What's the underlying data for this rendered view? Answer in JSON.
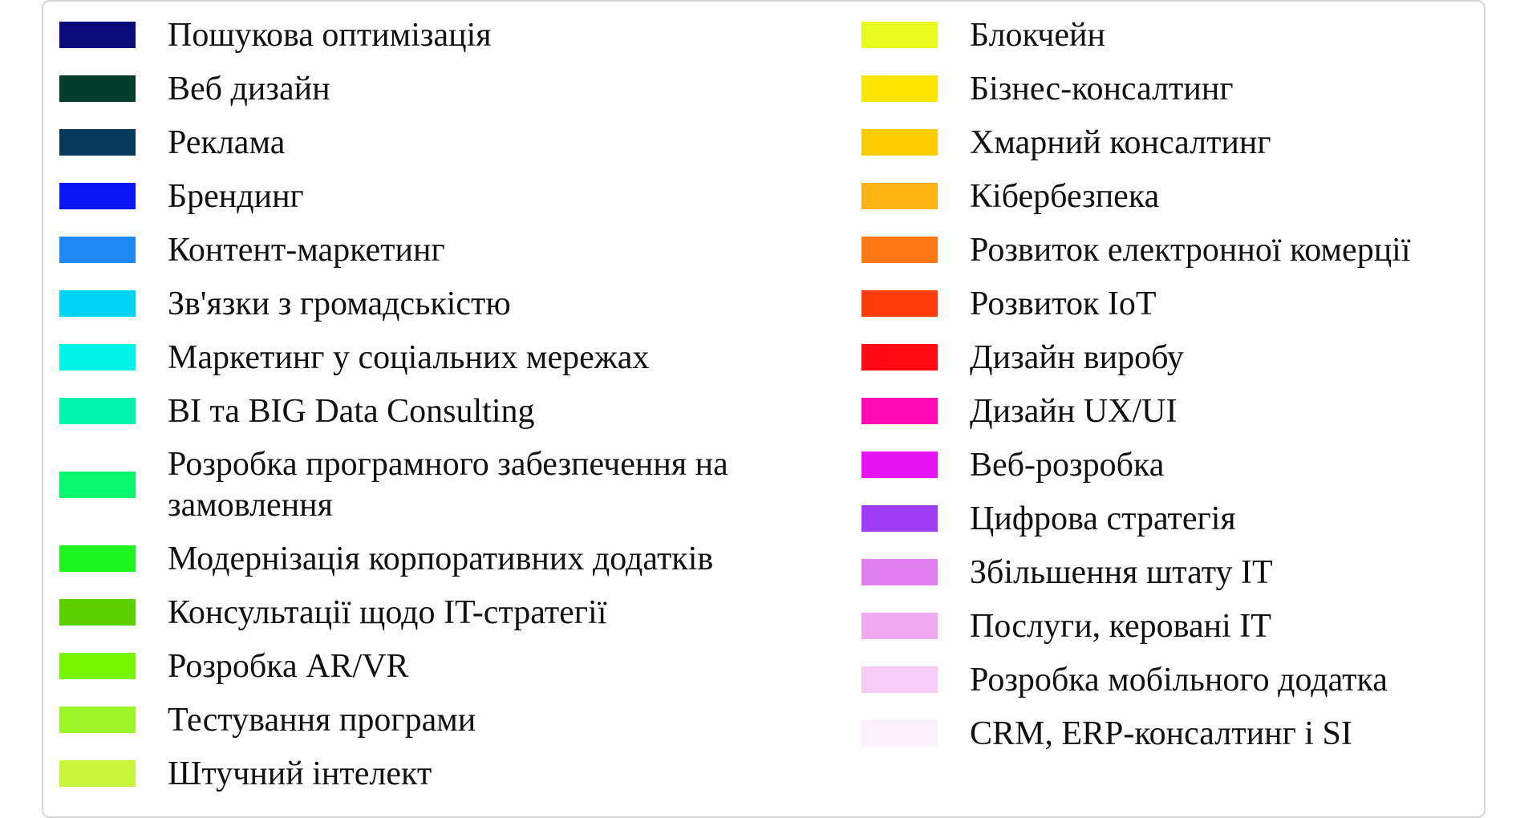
{
  "chart_data": {
    "type": "pie",
    "legend_placement": "full",
    "legend": [
      {
        "label": "Пошукова оптимізація",
        "color": "#0a0a7a"
      },
      {
        "label": "Веб дизайн",
        "color": "#003d2a"
      },
      {
        "label": "Реклама",
        "color": "#05395a"
      },
      {
        "label": "Брендинг",
        "color": "#0a14f5"
      },
      {
        "label": "Контент-маркетинг",
        "color": "#1e88f2"
      },
      {
        "label": "Зв'язки з громадськістю",
        "color": "#00d4f5"
      },
      {
        "label": "Маркетинг у соціальних мережах",
        "color": "#00f5e6"
      },
      {
        "label": "BI та BIG Data Consulting",
        "color": "#00f5aa"
      },
      {
        "label": "Розробка програмного забезпечення на замовлення",
        "color": "#0af56e"
      },
      {
        "label": "Модернізація корпоративних додатків",
        "color": "#1ef51e"
      },
      {
        "label": "Консультації щодо IT-стратегії",
        "color": "#5ccf00"
      },
      {
        "label": "Розробка AR/VR",
        "color": "#78f500"
      },
      {
        "label": "Тестування програми",
        "color": "#9ef528"
      },
      {
        "label": "Штучний інтелект",
        "color": "#c8f53c"
      },
      {
        "label": "Блокчейн",
        "color": "#e8fa1e"
      },
      {
        "label": "Бізнес-консалтинг",
        "color": "#ffe600"
      },
      {
        "label": "Хмарний консалтинг",
        "color": "#ffcc00"
      },
      {
        "label": "Кібербезпека",
        "color": "#ffb414"
      },
      {
        "label": "Розвиток електронної комерції",
        "color": "#ff7814"
      },
      {
        "label": "Розвиток IoT",
        "color": "#ff3c0a"
      },
      {
        "label": "Дизайн виробу",
        "color": "#ff0a14"
      },
      {
        "label": "Дизайн UX/UI",
        "color": "#ff0ab4"
      },
      {
        "label": "Веб-розробка",
        "color": "#e614f5"
      },
      {
        "label": "Цифрова стратегія",
        "color": "#a03cf5"
      },
      {
        "label": "Збільшення штату IT",
        "color": "#e17ef0"
      },
      {
        "label": "Послуги, керовані IT",
        "color": "#f0a8f0"
      },
      {
        "label": "Розробка мобільного додатка",
        "color": "#f8cdf5"
      },
      {
        "label": "CRM, ERP-консалтинг і SI",
        "color": "#fcf2fc"
      }
    ]
  }
}
